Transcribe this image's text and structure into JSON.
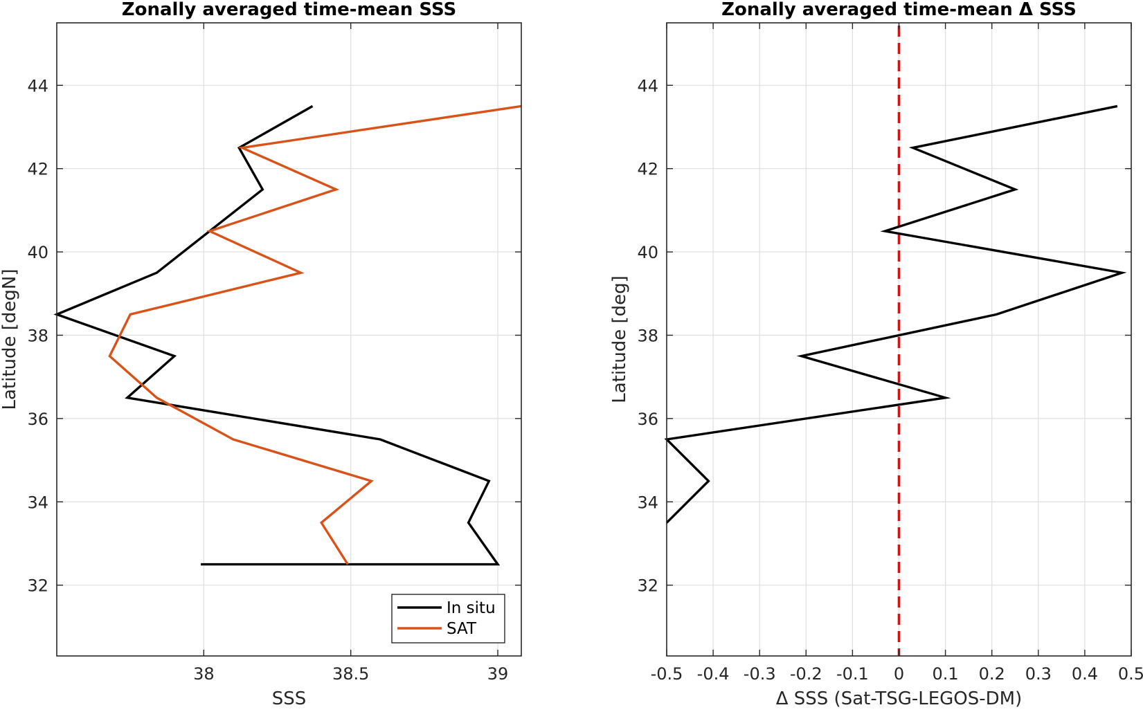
{
  "chart_data": [
    {
      "type": "line",
      "title": "Zonally averaged time-mean SSS",
      "xlabel": "SSS",
      "ylabel": "Latitude [degN]",
      "xlim": [
        37.5,
        39.08
      ],
      "ylim": [
        30.3,
        45.5
      ],
      "xticks": [
        38,
        38.5,
        39
      ],
      "yticks": [
        32,
        34,
        36,
        38,
        40,
        42,
        44
      ],
      "grid": true,
      "legend_position": "bottom-right",
      "series": [
        {
          "name": "In situ",
          "color": "#000000",
          "x": [
            37.99,
            39.0,
            38.9,
            38.97,
            38.6,
            37.74,
            37.9,
            37.5,
            37.84,
            38.2,
            38.12,
            38.37
          ],
          "y": [
            32.5,
            32.5,
            33.5,
            34.5,
            35.5,
            36.5,
            37.5,
            38.5,
            39.5,
            41.5,
            42.5,
            43.5
          ]
        },
        {
          "name": "SAT",
          "color": "#d95319",
          "x": [
            38.49,
            38.4,
            38.57,
            38.1,
            37.84,
            37.68,
            37.75,
            38.33,
            38.02,
            38.45,
            38.13,
            39.08
          ],
          "y": [
            32.5,
            33.5,
            34.5,
            35.5,
            36.5,
            37.5,
            38.5,
            39.5,
            40.5,
            41.5,
            42.5,
            43.5
          ]
        }
      ]
    },
    {
      "type": "line",
      "title": "Zonally averaged time-mean Δ SSS",
      "xlabel": "Δ SSS (Sat-TSG-LEGOS-DM)",
      "ylabel": "Latitude [deg]",
      "xlim": [
        -0.5,
        0.5
      ],
      "ylim": [
        30.3,
        45.5
      ],
      "xticks": [
        -0.5,
        -0.4,
        -0.3,
        -0.2,
        -0.1,
        0,
        0.1,
        0.2,
        0.3,
        0.4,
        0.5
      ],
      "yticks": [
        32,
        34,
        36,
        38,
        40,
        42,
        44
      ],
      "grid": true,
      "reference_line": {
        "x": 0,
        "color": "#ff0000",
        "style": "dashed"
      },
      "series": [
        {
          "color": "#000000",
          "x": [
            -0.5,
            -0.41,
            -0.5,
            0.1,
            -0.21,
            0.21,
            0.48,
            -0.03,
            0.25,
            0.03,
            0.47
          ],
          "y": [
            33.5,
            34.5,
            35.5,
            36.5,
            37.5,
            38.5,
            39.5,
            40.5,
            41.5,
            42.5,
            43.5
          ]
        }
      ]
    }
  ]
}
